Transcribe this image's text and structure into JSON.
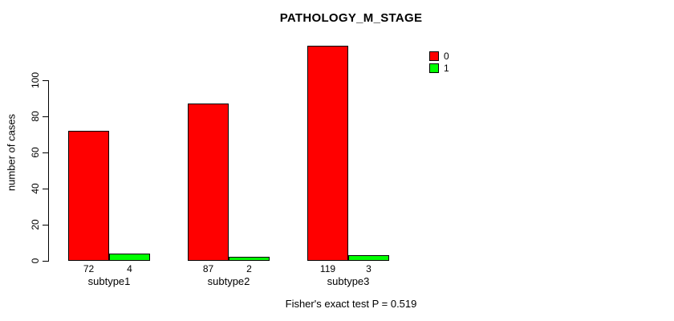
{
  "chart_data": {
    "type": "bar",
    "title": "PATHOLOGY_M_STAGE",
    "ylabel": "number of cases",
    "xlabel": "",
    "categories": [
      "subtype1",
      "subtype2",
      "subtype3"
    ],
    "series": [
      {
        "name": "0",
        "color": "#ff0000",
        "values": [
          72,
          87,
          119
        ]
      },
      {
        "name": "1",
        "color": "#00ff00",
        "values": [
          4,
          2,
          3
        ]
      }
    ],
    "bar_value_labels": [
      [
        "72",
        "4"
      ],
      [
        "87",
        "2"
      ],
      [
        "119",
        "3"
      ]
    ],
    "yticks": [
      0,
      20,
      40,
      60,
      80,
      100
    ],
    "ylim": [
      0,
      120
    ],
    "grid": false,
    "legend_position": "top-right",
    "annotation": "Fisher's exact test P = 0.519"
  }
}
